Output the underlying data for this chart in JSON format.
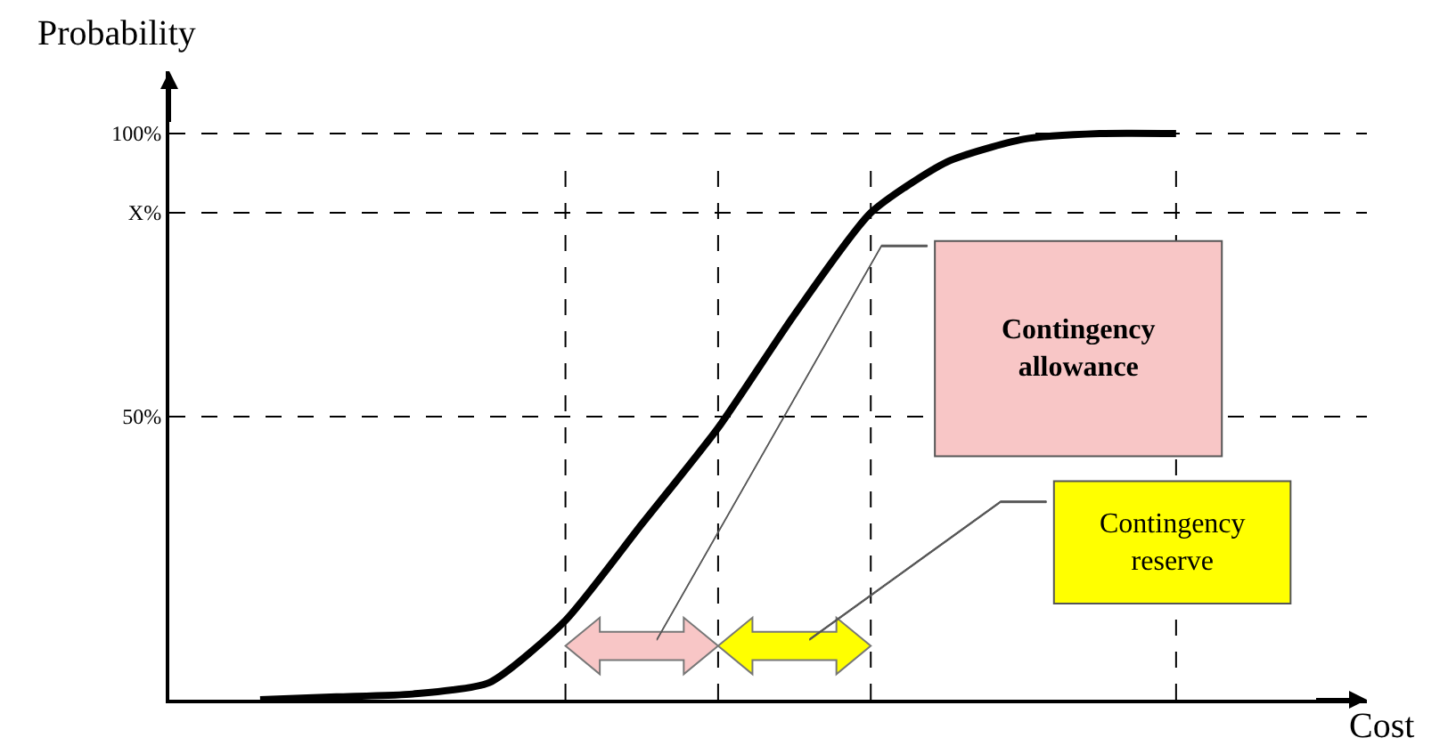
{
  "chart_data": {
    "type": "line",
    "xlabel": "Cost",
    "ylabel": "Probability",
    "categories": [
      null,
      null,
      null,
      null,
      null,
      null,
      null,
      null,
      null,
      null,
      null,
      null,
      null
    ],
    "series": [
      {
        "color": "#000000",
        "values": [
          0,
          0.5,
          1,
          3,
          14,
          31,
          48,
          68,
          86,
          95,
          99,
          100,
          100
        ]
      }
    ],
    "ylim": [
      0,
      111
    ],
    "yticks": [
      {
        "value": 50,
        "label": "50%"
      },
      {
        "value": 86,
        "label": "X%"
      },
      {
        "value": 100,
        "label": "100%"
      }
    ],
    "tick_labels": "y",
    "grid": true,
    "marker": "none",
    "line_style": "solid",
    "annotations": [
      "Contingency allowance",
      "Contingency reserve"
    ]
  }
}
